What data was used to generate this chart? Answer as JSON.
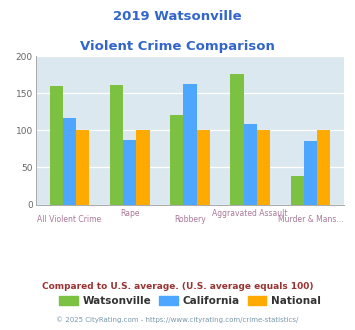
{
  "title_line1": "2019 Watsonville",
  "title_line2": "Violent Crime Comparison",
  "categories": [
    "All Violent Crime",
    "Rape",
    "Robbery",
    "Aggravated Assault",
    "Murder & Mans..."
  ],
  "watsonville": [
    160,
    161,
    120,
    176,
    38
  ],
  "california": [
    117,
    87,
    163,
    108,
    86
  ],
  "national": [
    100,
    100,
    100,
    100,
    100
  ],
  "color_watsonville": "#7dc142",
  "color_california": "#4da6ff",
  "color_national": "#ffaa00",
  "ylim": [
    0,
    200
  ],
  "yticks": [
    0,
    50,
    100,
    150,
    200
  ],
  "bg_color": "#dce8f0",
  "title_color": "#3366cc",
  "xlabel_color": "#aa7799",
  "footer_text": "Compared to U.S. average. (U.S. average equals 100)",
  "footer_color": "#993333",
  "copyright_text": "© 2025 CityRating.com - https://www.cityrating.com/crime-statistics/",
  "copyright_color": "#7799aa",
  "legend_labels": [
    "Watsonville",
    "California",
    "National"
  ],
  "bar_width": 0.22
}
